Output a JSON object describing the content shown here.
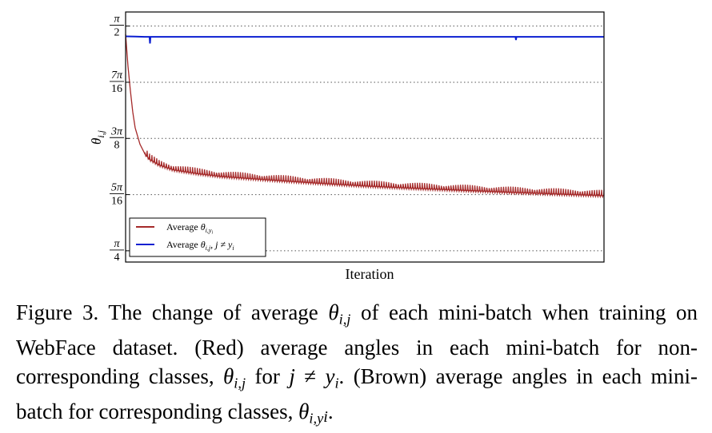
{
  "chart_data": {
    "type": "line",
    "title": "",
    "xlabel": "Iteration",
    "ylabel": "θ_{i,j}",
    "ylim": [
      0.746,
      1.62
    ],
    "yticks": [
      {
        "value": 0.7854,
        "label_num": "π",
        "label_den": "4"
      },
      {
        "value": 0.9817,
        "label_num": "5π",
        "label_den": "16"
      },
      {
        "value": 1.1781,
        "label_num": "3π",
        "label_den": "8"
      },
      {
        "value": 1.3744,
        "label_num": "7π",
        "label_den": "16"
      },
      {
        "value": 1.5708,
        "label_num": "π",
        "label_den": "2"
      }
    ],
    "grid": "horizontal-dotted",
    "legend_placement": "bottom-left",
    "series": [
      {
        "name": "Average θ_{i,y_i}",
        "legend_text": "Average",
        "legend_math": "θ",
        "legend_sub": "i,y",
        "legend_subsub": "i",
        "color": "#a52a2a",
        "x": [
          0,
          0.005,
          0.01,
          0.015,
          0.02,
          0.03,
          0.04,
          0.05,
          0.07,
          0.1,
          0.15,
          0.2,
          0.3,
          0.4,
          0.5,
          0.6,
          0.7,
          0.8,
          0.9,
          1.0
        ],
        "y": [
          1.542,
          1.43,
          1.345,
          1.27,
          1.215,
          1.158,
          1.125,
          1.105,
          1.085,
          1.068,
          1.055,
          1.045,
          1.033,
          1.022,
          1.012,
          1.004,
          0.997,
          0.99,
          0.984,
          0.978
        ],
        "spike_amplitude": 0.02
      },
      {
        "name": "Average θ_{i,j}, j ≠ y_i",
        "legend_text": "Average",
        "legend_math": "θ",
        "legend_sub": "i,j",
        "legend_tail": ", j ≠ y",
        "legend_tail_sub": "i",
        "color": "#0b1fd1",
        "x": [
          0,
          0.02,
          0.04,
          0.05,
          0.051,
          0.052,
          0.1,
          0.3,
          0.5,
          0.8,
          0.815,
          0.816,
          0.817,
          1.0
        ],
        "y": [
          1.535,
          1.534,
          1.533,
          1.533,
          1.51,
          1.533,
          1.533,
          1.533,
          1.533,
          1.533,
          1.533,
          1.522,
          1.533,
          1.533
        ]
      }
    ]
  },
  "caption": {
    "figure_label": "Figure 3.",
    "text_1": " The change of average ",
    "math_theta": "θ",
    "sub_ij": "i,j",
    "text_2": " of each mini-batch when training on WebFace dataset. (Red) average angles in each mini-batch for non-corresponding classes, ",
    "text_3": " for ",
    "math_j": "j",
    "neq": " ≠ ",
    "math_y": "y",
    "sub_i": "i",
    "text_4": ". (Brown) average angles in each mini-batch for corresponding classes, ",
    "sub_iy": "i,y",
    "text_5": "."
  }
}
